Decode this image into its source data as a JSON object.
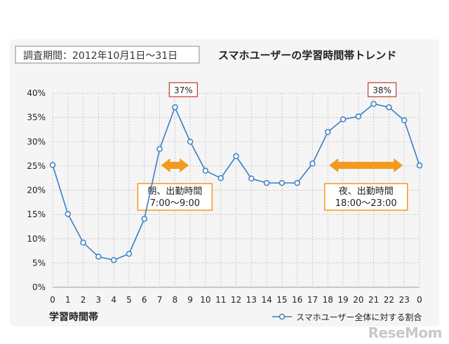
{
  "chart_data": {
    "type": "line",
    "period_label": "調査期間：2012年10月1日～31日",
    "title": "スマホユーザーの学習時間帯トレンド",
    "xlabel": "学習時間帯",
    "ylabel": "",
    "categories": [
      "0",
      "1",
      "2",
      "3",
      "4",
      "5",
      "6",
      "7",
      "8",
      "9",
      "10",
      "11",
      "12",
      "13",
      "14",
      "15",
      "16",
      "17",
      "18",
      "19",
      "20",
      "21",
      "22",
      "23",
      "0"
    ],
    "series": [
      {
        "name": "スマホユーザー全体に対する割合",
        "color": "#3a7fc1",
        "values": [
          25.2,
          15.1,
          9.2,
          6.3,
          5.6,
          6.9,
          14.1,
          28.5,
          37.1,
          30.0,
          24.0,
          22.5,
          27.0,
          22.4,
          21.5,
          21.5,
          21.5,
          25.5,
          32.0,
          34.6,
          35.2,
          37.8,
          37.1,
          34.4,
          25.1
        ]
      }
    ],
    "ylim": [
      0,
      40
    ],
    "yticks": [
      "0%",
      "5%",
      "10%",
      "15%",
      "20%",
      "25%",
      "30%",
      "35%",
      "40%"
    ],
    "grid": true,
    "legend_position": "bottom-right",
    "annotations": [
      {
        "text": "37%",
        "category_index": 8,
        "border_color": "#c0392b"
      },
      {
        "text": "38%",
        "category_index": 21,
        "border_color": "#c0392b"
      }
    ],
    "callouts": [
      {
        "line1": "朝、出勤時間",
        "line2": "7:00～9:00",
        "from_index": 7,
        "to_index": 9,
        "color": "#f39a1e"
      },
      {
        "line1": "夜、出勤時間",
        "line2": "18:00～23:00",
        "from_index": 18,
        "to_index": 23,
        "color": "#f39a1e"
      }
    ]
  },
  "watermark": "ReseMom"
}
